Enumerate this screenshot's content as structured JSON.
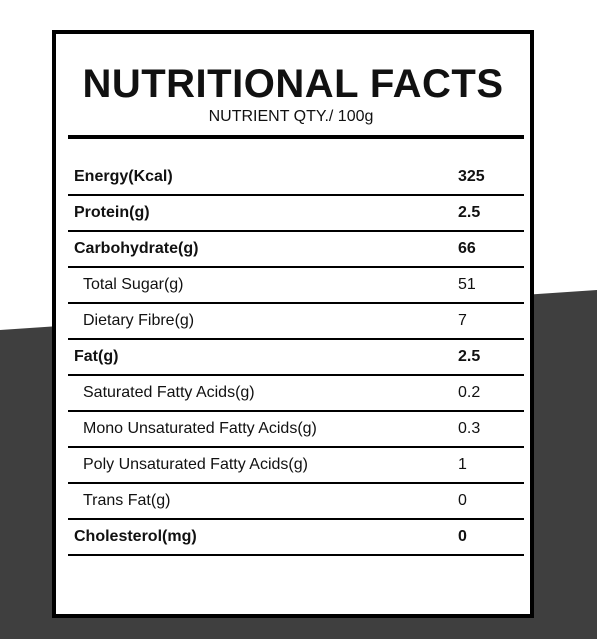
{
  "colors": {
    "background_light": "#ffffff",
    "background_dark": "#3f3f3f",
    "border": "#000000",
    "text": "#111111"
  },
  "label": {
    "title": "NUTRITIONAL FACTS",
    "subtitle": "NUTRIENT QTY./ 100g",
    "rows": [
      {
        "name": "Energy(Kcal)",
        "value": "325",
        "bold": true,
        "indent": false
      },
      {
        "name": "Protein(g)",
        "value": "2.5",
        "bold": true,
        "indent": false
      },
      {
        "name": "Carbohydrate(g)",
        "value": "66",
        "bold": true,
        "indent": false
      },
      {
        "name": "Total Sugar(g)",
        "value": "51",
        "bold": false,
        "indent": true
      },
      {
        "name": "Dietary Fibre(g)",
        "value": "7",
        "bold": false,
        "indent": true
      },
      {
        "name": "Fat(g)",
        "value": "2.5",
        "bold": true,
        "indent": false
      },
      {
        "name": "Saturated Fatty Acids(g)",
        "value": "0.2",
        "bold": false,
        "indent": true
      },
      {
        "name": "Mono Unsaturated Fatty Acids(g)",
        "value": "0.3",
        "bold": false,
        "indent": true
      },
      {
        "name": "Poly Unsaturated Fatty Acids(g)",
        "value": "1",
        "bold": false,
        "indent": true
      },
      {
        "name": "Trans Fat(g)",
        "value": "0",
        "bold": false,
        "indent": true
      },
      {
        "name": "Cholesterol(mg)",
        "value": "0",
        "bold": true,
        "indent": false
      }
    ]
  }
}
